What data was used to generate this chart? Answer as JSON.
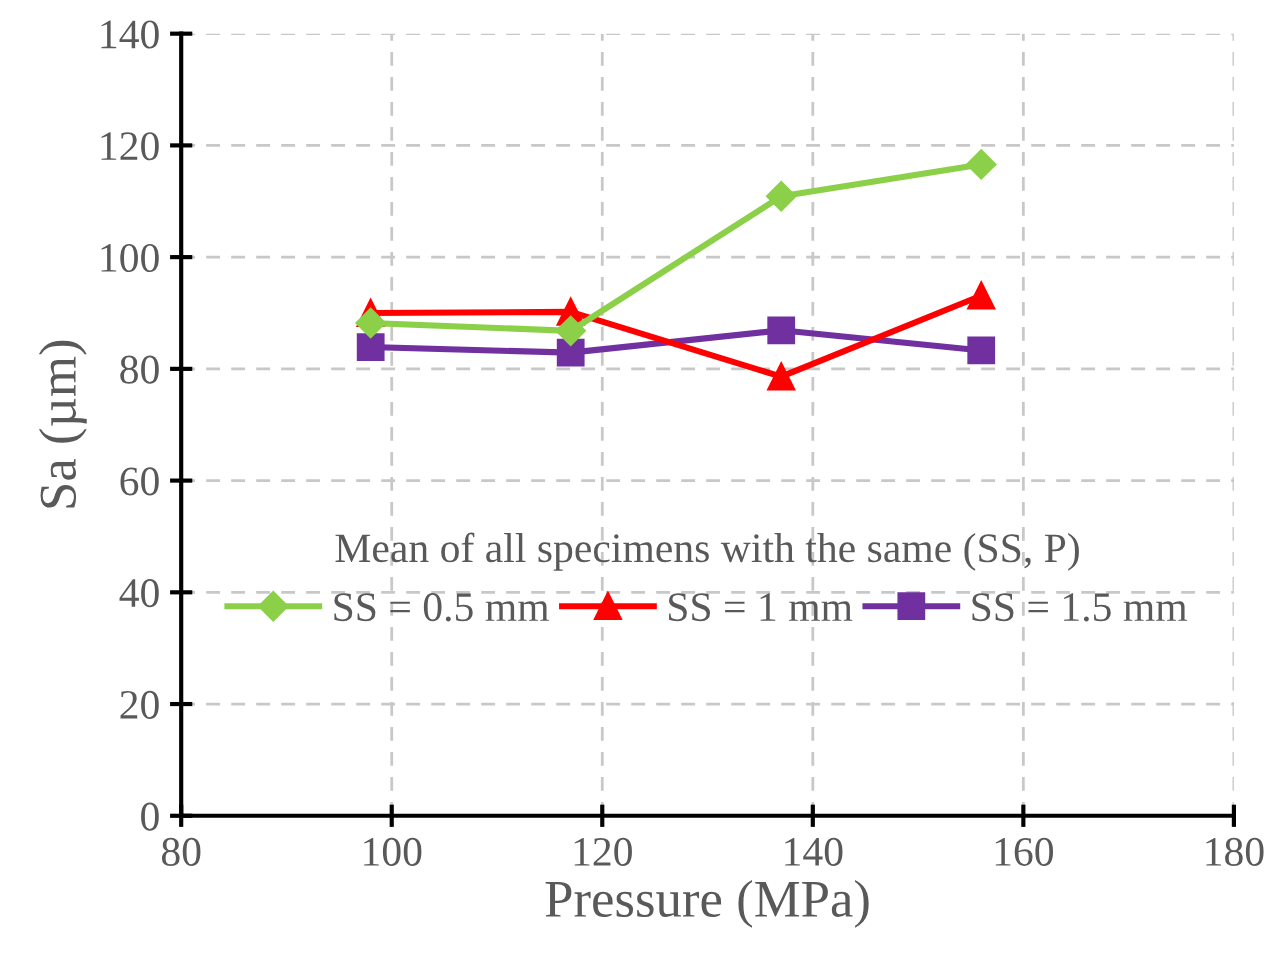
{
  "chart_data": {
    "type": "line",
    "xlabel": "Pressure (MPa)",
    "ylabel": "Sa (µm)",
    "x": [
      98,
      117,
      137,
      156
    ],
    "series": [
      {
        "name": "SS = 0.5 mm",
        "color": "#8cd04a",
        "marker": "diamond",
        "values": [
          88.2,
          86.8,
          110.9,
          116.6
        ]
      },
      {
        "name": "SS = 1 mm",
        "color": "#ff0000",
        "marker": "triangle",
        "values": [
          90.0,
          90.2,
          78.6,
          93.1
        ]
      },
      {
        "name": "SS = 1.5 mm",
        "color": "#7030a0",
        "marker": "square",
        "values": [
          83.9,
          82.9,
          86.9,
          83.3
        ]
      }
    ],
    "xlim": [
      80,
      180
    ],
    "xticks": [
      80,
      100,
      120,
      140,
      160,
      180
    ],
    "ylim": [
      0,
      140
    ],
    "yticks": [
      0,
      20,
      40,
      60,
      80,
      100,
      120,
      140
    ],
    "grid": true,
    "line_style": "solid",
    "legend": "bottom",
    "legend_title": "Mean of all specimens with the same (SS, P)"
  }
}
